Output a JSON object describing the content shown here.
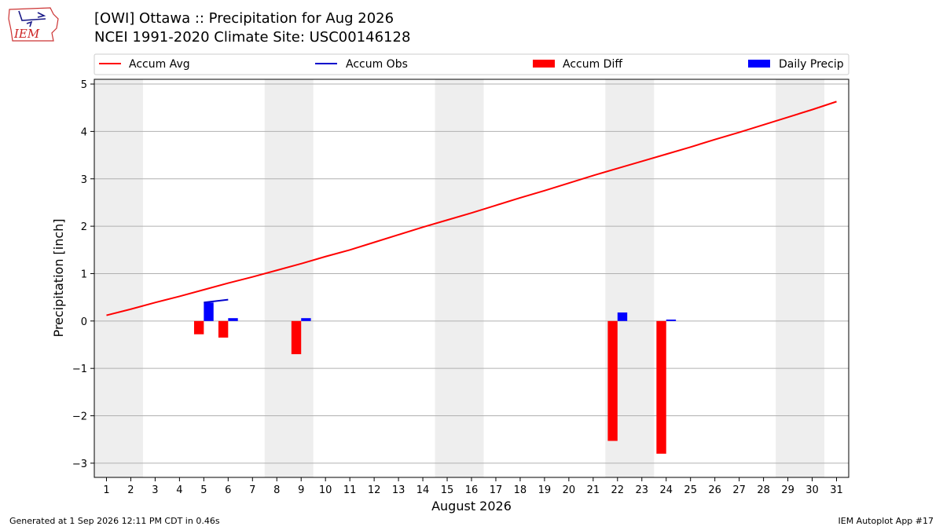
{
  "header": {
    "title_line1": "[OWI] Ottawa :: Precipitation for Aug 2026",
    "title_line2": "NCEI 1991-2020 Climate Site: USC00146128",
    "logo_text": "IEM"
  },
  "footer": {
    "left": "Generated at 1 Sep 2026 12:11 PM CDT in 0.46s",
    "right": "IEM Autoplot App #17"
  },
  "colors": {
    "avg": "#ff0000",
    "obs": "#0000cc",
    "diff": "#ff0000",
    "daily": "#0000ff",
    "weekend_band": "#eeeeee",
    "grid": "#b0b0b0"
  },
  "chart_data": {
    "type": "bar",
    "xlabel": "August 2026",
    "ylabel": "Precipitation [inch]",
    "xlim": [
      0.5,
      31.5
    ],
    "ylim": [
      -3.3,
      5.1
    ],
    "yticks": [
      -3,
      -2,
      -1,
      0,
      1,
      2,
      3,
      4,
      5
    ],
    "xticks": [
      1,
      2,
      3,
      4,
      5,
      6,
      7,
      8,
      9,
      10,
      11,
      12,
      13,
      14,
      15,
      16,
      17,
      18,
      19,
      20,
      21,
      22,
      23,
      24,
      25,
      26,
      27,
      28,
      29,
      30,
      31
    ],
    "grid": "horizontal",
    "legend_position": "top",
    "weekend_bands": [
      [
        0.5,
        2.5
      ],
      [
        7.5,
        9.5
      ],
      [
        14.5,
        16.5
      ],
      [
        21.5,
        23.5
      ],
      [
        28.5,
        30.5
      ]
    ],
    "legend": [
      "Accum Avg",
      "Accum Obs",
      "Accum Diff",
      "Daily Precip"
    ],
    "accum_avg": {
      "x": [
        1,
        2,
        3,
        4,
        5,
        6,
        7,
        8,
        9,
        10,
        11,
        12,
        13,
        14,
        15,
        16,
        17,
        18,
        19,
        20,
        21,
        22,
        23,
        24,
        25,
        26,
        27,
        28,
        29,
        30,
        31
      ],
      "y": [
        0.12,
        0.25,
        0.39,
        0.52,
        0.66,
        0.8,
        0.93,
        1.07,
        1.21,
        1.36,
        1.5,
        1.66,
        1.82,
        1.98,
        2.13,
        2.28,
        2.44,
        2.6,
        2.75,
        2.91,
        3.07,
        3.22,
        3.37,
        3.52,
        3.67,
        3.83,
        3.98,
        4.14,
        4.3,
        4.46,
        4.63
      ]
    },
    "accum_obs": {
      "x": [
        5,
        6
      ],
      "y": [
        0.39,
        0.45
      ]
    },
    "accum_diff": {
      "x": [
        5,
        6,
        9,
        22,
        24
      ],
      "values": [
        -0.28,
        -0.35,
        -0.7,
        -2.53,
        -2.8
      ]
    },
    "daily_precip": {
      "x": [
        5,
        6,
        9,
        22,
        24
      ],
      "values": [
        0.39,
        0.06,
        0.06,
        0.18,
        0.03
      ]
    }
  }
}
